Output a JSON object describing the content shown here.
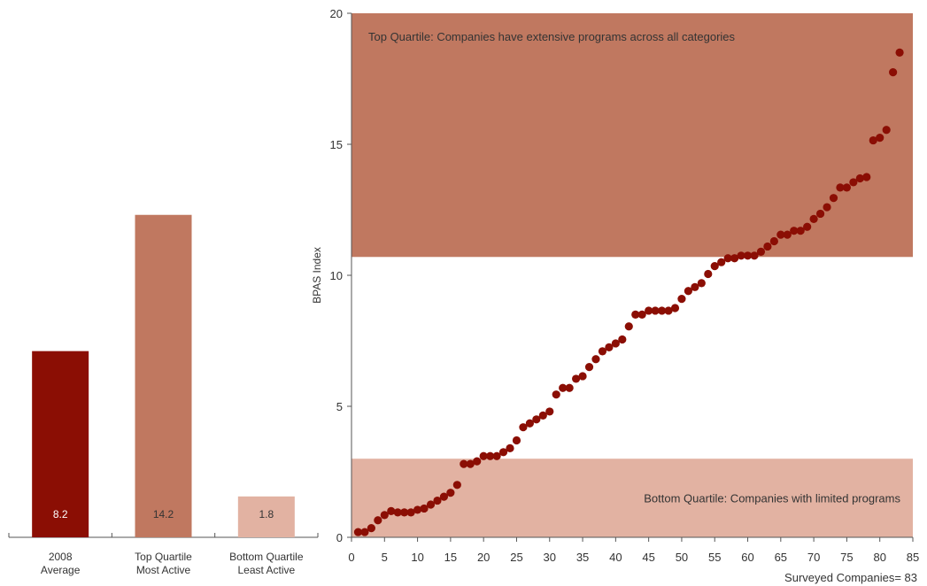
{
  "chart_data": [
    {
      "type": "bar",
      "categories": [
        [
          "2008",
          "Average"
        ],
        [
          "Top Quartile",
          "Most Active"
        ],
        [
          "Bottom Quartile",
          "Least Active"
        ]
      ],
      "values": [
        8.2,
        14.2,
        1.8
      ],
      "value_labels": [
        "8.2",
        "14.2",
        "1.8"
      ],
      "colors": [
        "#8b0e04",
        "#c07860",
        "#e2b2a2"
      ],
      "ylim": [
        0,
        23
      ],
      "title": "",
      "xlabel": "",
      "ylabel": ""
    },
    {
      "type": "scatter",
      "title": "",
      "xlabel": "Surveyed Companies= 83",
      "ylabel": "BPAS Index",
      "xlim": [
        0,
        85
      ],
      "ylim": [
        0,
        20
      ],
      "xticks": [
        0,
        5,
        10,
        15,
        20,
        25,
        30,
        35,
        40,
        45,
        50,
        55,
        60,
        65,
        70,
        75,
        80,
        85
      ],
      "yticks": [
        0,
        5,
        10,
        15,
        20
      ],
      "point_color": "#8b0e04",
      "bands": [
        {
          "ymin": 10.7,
          "ymax": 20,
          "color": "#c07860",
          "label": "Top Quartile: Companies have extensive programs across all categories"
        },
        {
          "ymin": 0,
          "ymax": 3.0,
          "color": "#e2b2a2",
          "label": "Bottom Quartile: Companies with limited programs"
        }
      ],
      "x": [
        1,
        2,
        3,
        4,
        5,
        6,
        7,
        8,
        9,
        10,
        11,
        12,
        13,
        14,
        15,
        16,
        17,
        18,
        19,
        20,
        21,
        22,
        23,
        24,
        25,
        26,
        27,
        28,
        29,
        30,
        31,
        32,
        33,
        34,
        35,
        36,
        37,
        38,
        39,
        40,
        41,
        42,
        43,
        44,
        45,
        46,
        47,
        48,
        49,
        50,
        51,
        52,
        53,
        54,
        55,
        56,
        57,
        58,
        59,
        60,
        61,
        62,
        63,
        64,
        65,
        66,
        67,
        68,
        69,
        70,
        71,
        72,
        73,
        74,
        75,
        76,
        77,
        78,
        79,
        80,
        81,
        82,
        83
      ],
      "y": [
        0.2,
        0.2,
        0.35,
        0.65,
        0.85,
        1.0,
        0.95,
        0.95,
        0.95,
        1.05,
        1.1,
        1.25,
        1.4,
        1.55,
        1.7,
        2.0,
        2.8,
        2.8,
        2.9,
        3.1,
        3.1,
        3.1,
        3.25,
        3.4,
        3.7,
        4.2,
        4.35,
        4.5,
        4.65,
        4.8,
        5.45,
        5.7,
        5.7,
        6.05,
        6.15,
        6.5,
        6.8,
        7.1,
        7.25,
        7.4,
        7.55,
        8.05,
        8.5,
        8.5,
        8.65,
        8.65,
        8.65,
        8.65,
        8.75,
        9.1,
        9.4,
        9.55,
        9.7,
        10.05,
        10.35,
        10.5,
        10.65,
        10.65,
        10.75,
        10.75,
        10.75,
        10.9,
        11.1,
        11.3,
        11.55,
        11.55,
        11.7,
        11.7,
        11.85,
        12.15,
        12.35,
        12.6,
        12.95,
        13.35,
        13.35,
        13.55,
        13.7,
        13.75,
        15.15,
        15.25,
        15.55,
        17.75,
        18.5
      ]
    }
  ]
}
